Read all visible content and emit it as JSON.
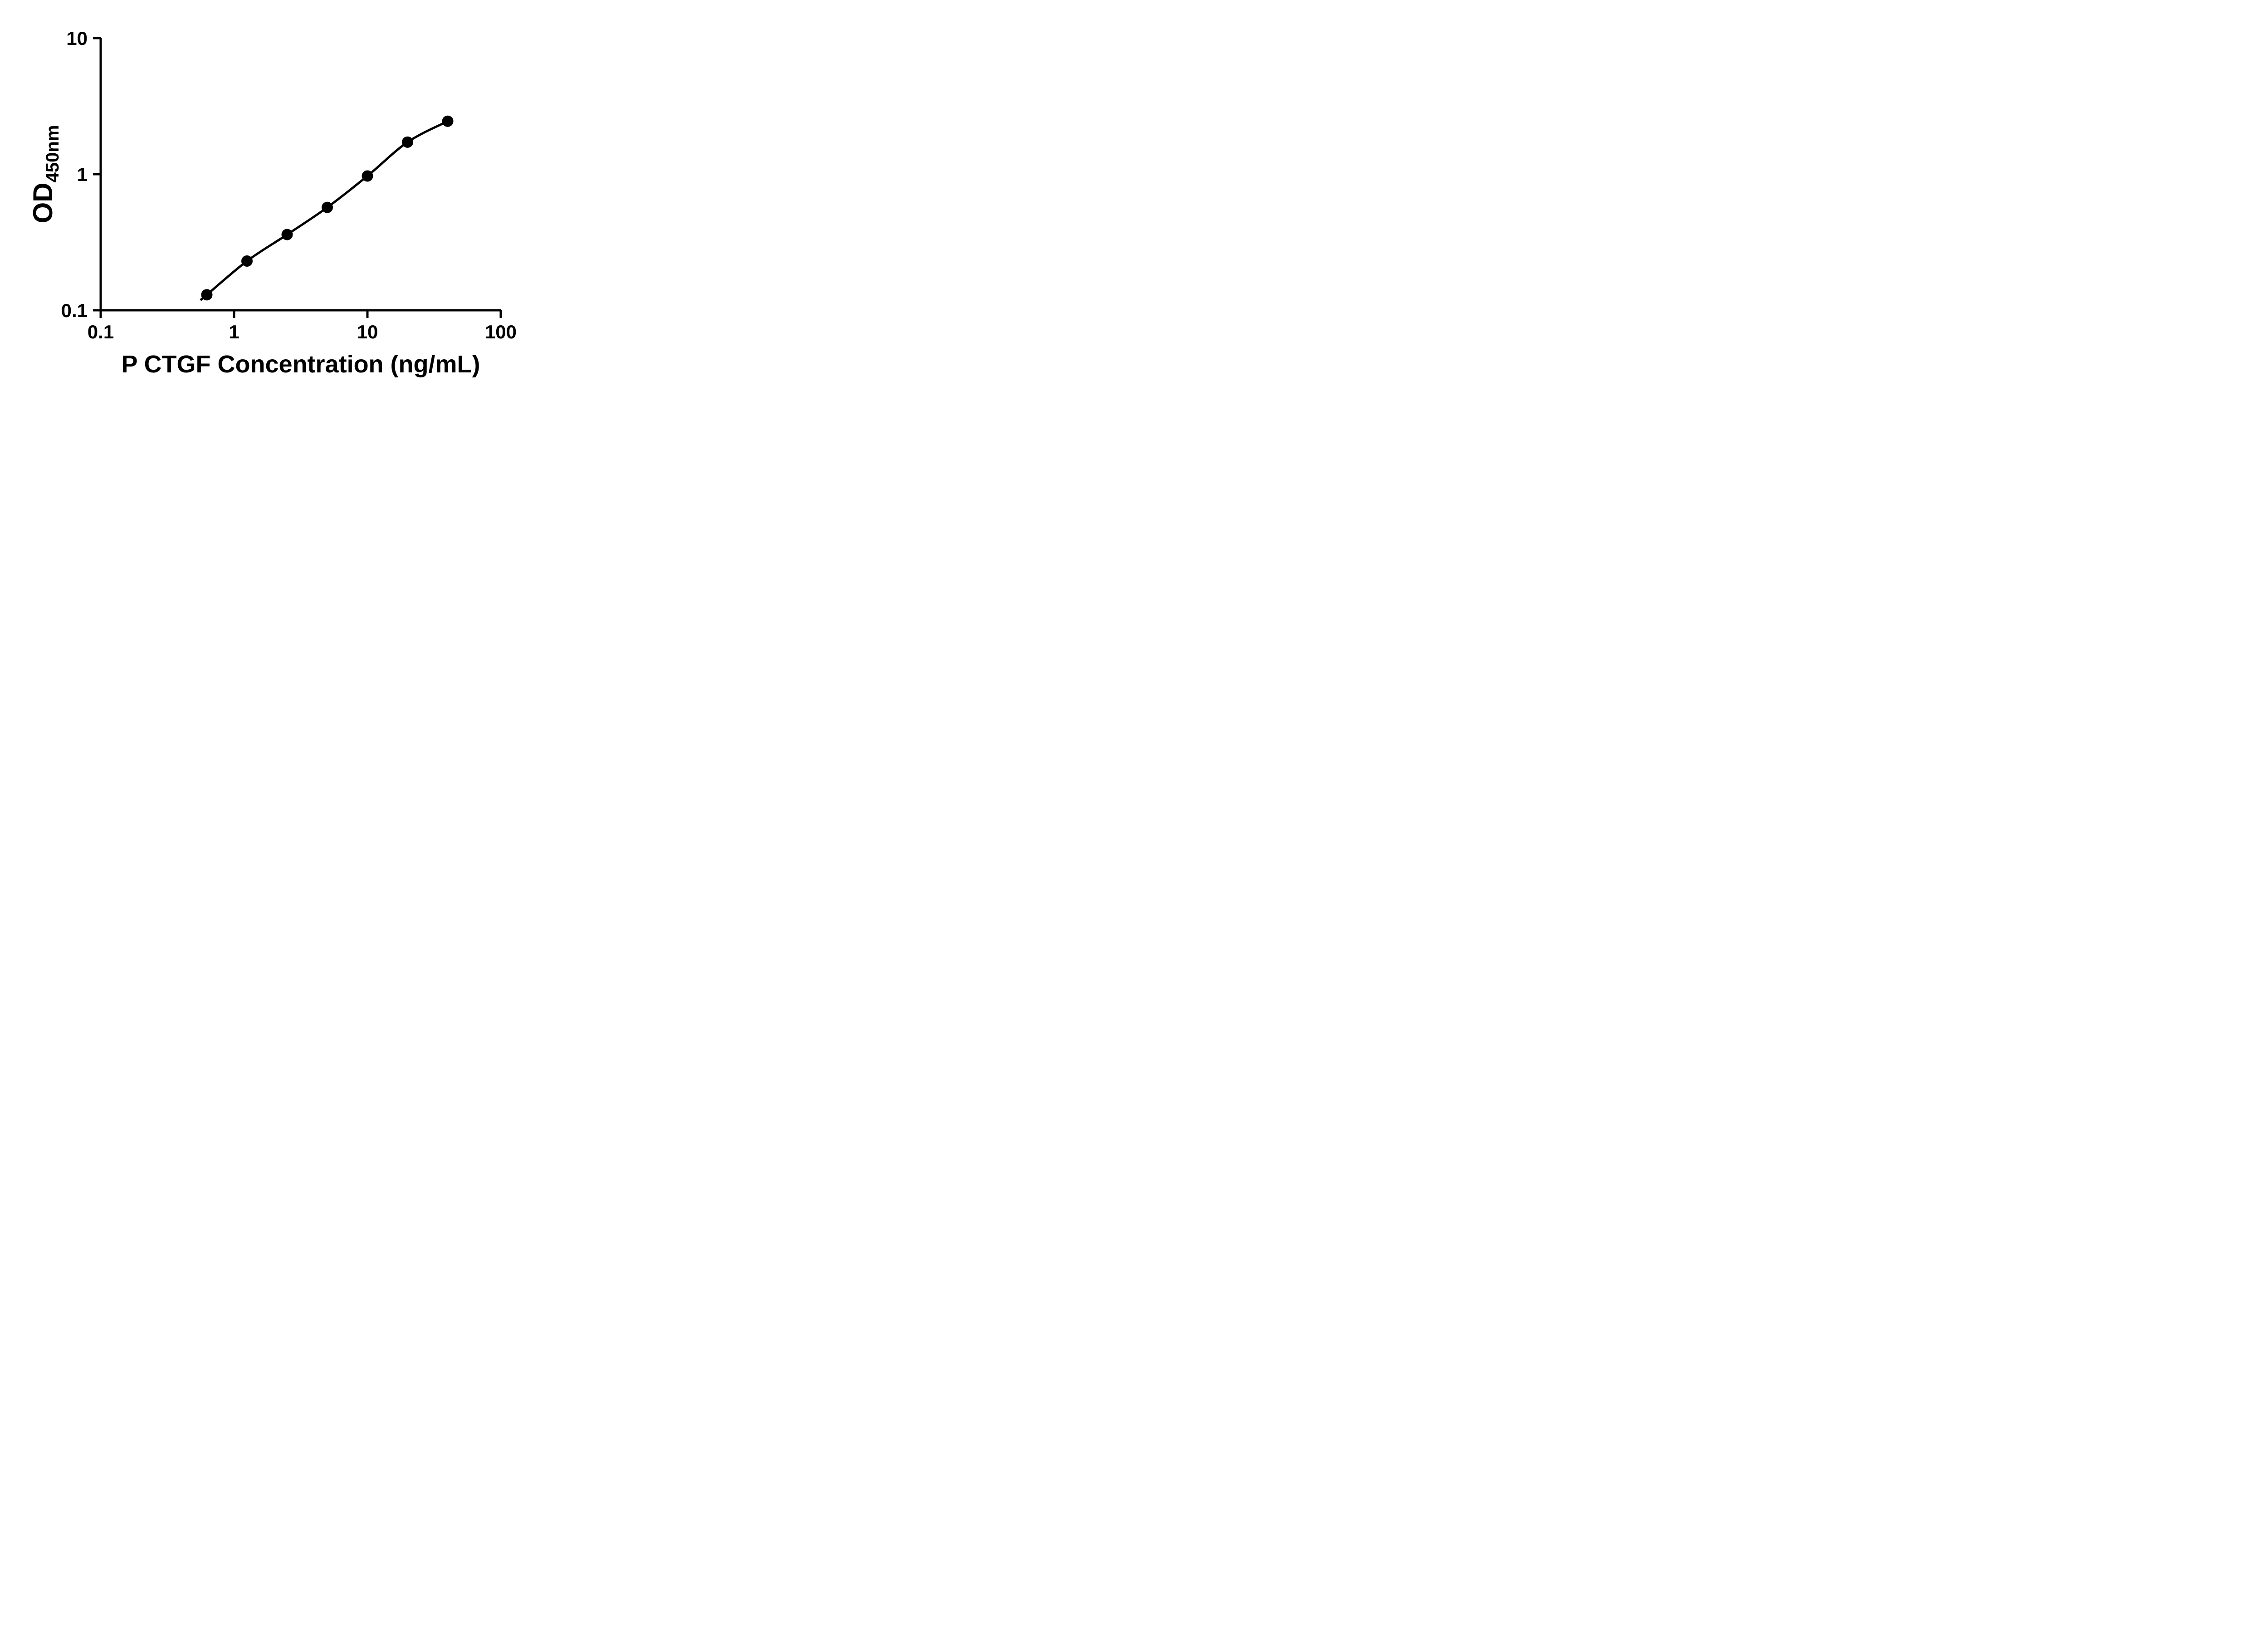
{
  "figure": {
    "background_color": "#ffffff",
    "foreground_color": "#000000"
  },
  "chart_data": {
    "type": "scatter",
    "title": "",
    "xlabel": "P CTGF Concentration (ng/mL)",
    "ylabel_main": "OD",
    "ylabel_sub": "450nm",
    "x_scale": "log10",
    "y_scale": "log10",
    "xlim": [
      0.1,
      100
    ],
    "ylim": [
      0.1,
      10
    ],
    "x_ticks": [
      0.1,
      1,
      10,
      100
    ],
    "x_tick_labels": [
      "0.1",
      "1",
      "10",
      "100"
    ],
    "y_ticks": [
      0.1,
      1,
      10
    ],
    "y_tick_labels": [
      "0.1",
      "1",
      "10"
    ],
    "grid": false,
    "legend": null,
    "tick_direction": "out",
    "series": [
      {
        "name": "standard-curve",
        "marker": "filled-circle",
        "color": "#000000",
        "line": "smooth-fit",
        "points": [
          {
            "x": 0.625,
            "y": 0.13
          },
          {
            "x": 1.25,
            "y": 0.23
          },
          {
            "x": 2.5,
            "y": 0.36
          },
          {
            "x": 5,
            "y": 0.57
          },
          {
            "x": 10,
            "y": 0.97
          },
          {
            "x": 20,
            "y": 1.72
          },
          {
            "x": 40,
            "y": 2.45
          }
        ]
      }
    ]
  }
}
